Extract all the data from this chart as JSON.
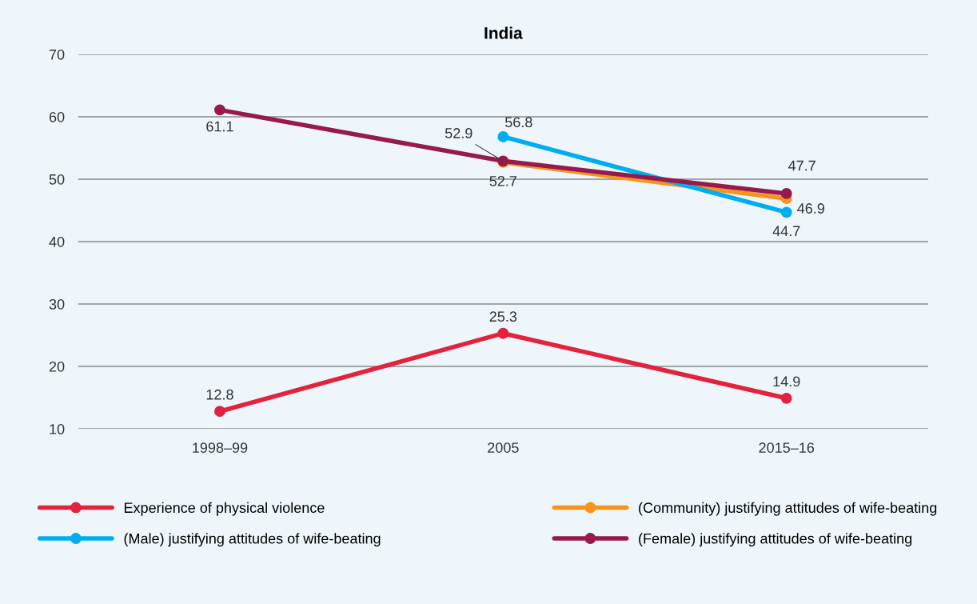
{
  "chart_data": {
    "type": "line",
    "title": "India",
    "categories": [
      "1998–99",
      "2005",
      "2015–16"
    ],
    "series": [
      {
        "name": "Experience of physical violence",
        "color": "#e2233d",
        "values": [
          12.8,
          25.3,
          14.9
        ]
      },
      {
        "name": "(Community) justifying attitudes of wife-beating",
        "color": "#f7941d",
        "values": [
          null,
          52.7,
          46.9
        ]
      },
      {
        "name": "(Male) justifying attitudes of wife-beating",
        "color": "#00aeef",
        "values": [
          null,
          56.8,
          44.7
        ]
      },
      {
        "name": "(Female) justifying attitudes of wife-beating",
        "color": "#961b4c",
        "values": [
          61.1,
          52.9,
          47.7
        ]
      }
    ],
    "ylim": [
      10,
      70
    ],
    "yticks": [
      10,
      20,
      30,
      40,
      50,
      60,
      70
    ],
    "grid": "y",
    "legend": "bottom",
    "marker": "circle",
    "line_style": "solid",
    "data_labels": true
  }
}
